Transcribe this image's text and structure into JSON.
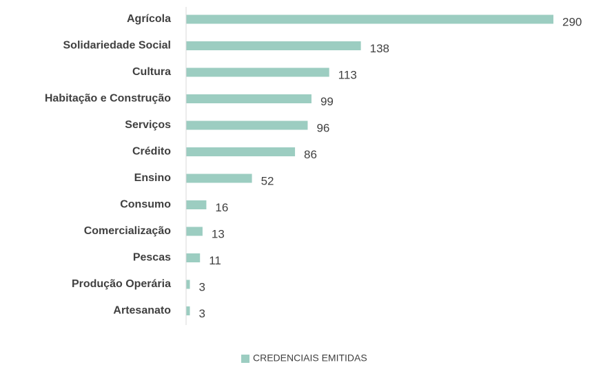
{
  "chart_data": {
    "type": "barh",
    "categories": [
      "Agrícola",
      "Solidariedade Social",
      "Cultura",
      "Habitação e Construção",
      "Serviços",
      "Crédito",
      "Ensino",
      "Consumo",
      "Comercialização",
      "Pescas",
      "Produção Operária",
      "Artesanato"
    ],
    "series": [
      {
        "name": "CREDENCIAIS EMITIDAS",
        "color": "#9ccdc1",
        "values": [
          290,
          138,
          113,
          99,
          96,
          86,
          52,
          16,
          13,
          11,
          3,
          3
        ]
      }
    ],
    "legend": "bottom"
  }
}
